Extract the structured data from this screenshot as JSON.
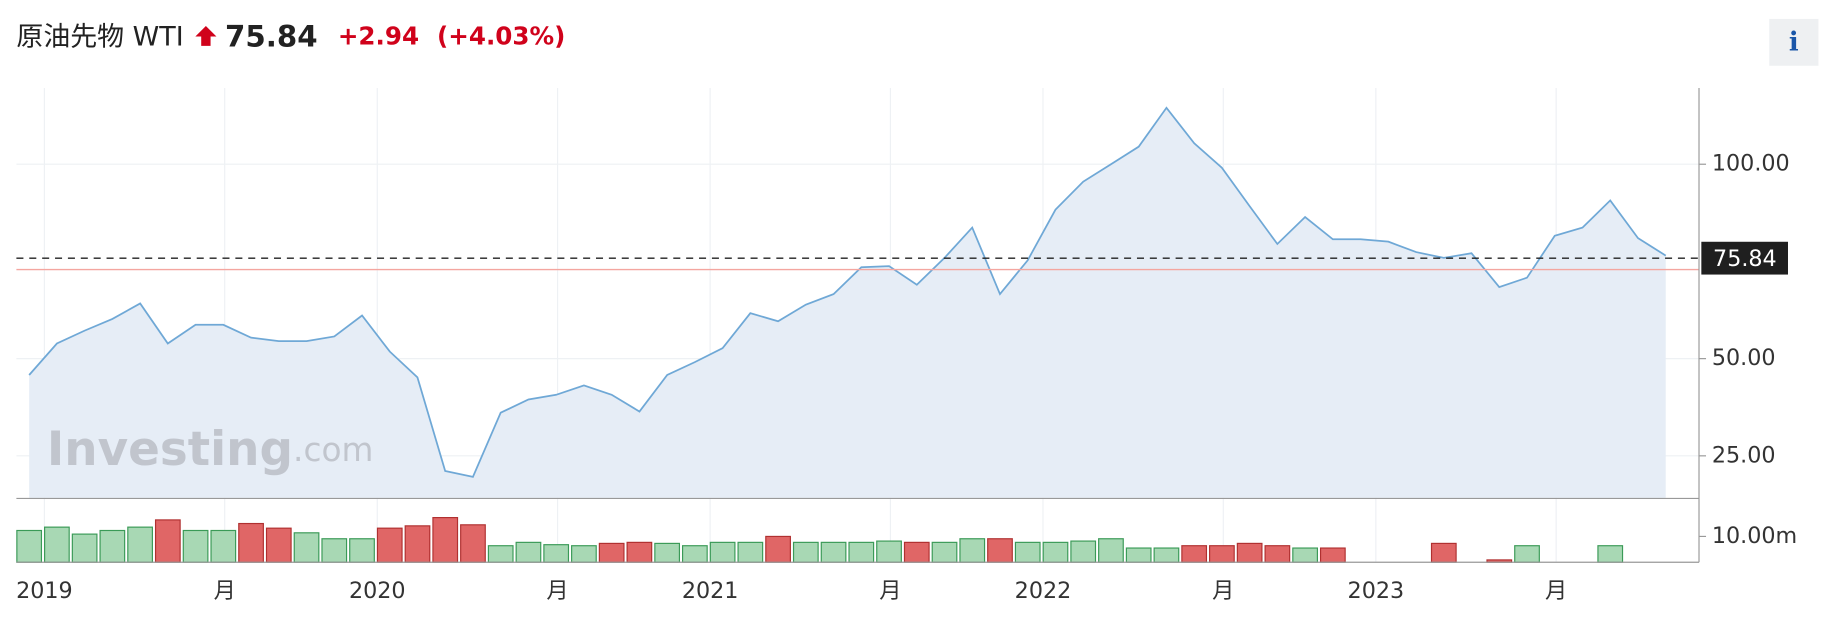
{
  "header": {
    "title": "原油先物 WTI",
    "price": "75.84",
    "change": "+2.94",
    "change_pct": "(+4.03%)",
    "info": "i"
  },
  "watermark": {
    "brand": "Investing",
    "suffix": ".com"
  },
  "chart_data": {
    "type": "area",
    "color": "#6fa8d6",
    "fill": "#e6edf6",
    "values": [
      45.8,
      53.9,
      57.2,
      60.2,
      64.2,
      53.9,
      58.7,
      58.7,
      55.4,
      54.5,
      54.5,
      55.7,
      61.1,
      51.8,
      45.2,
      21.1,
      19.6,
      36.1,
      39.5,
      40.7,
      43.1,
      40.7,
      36.4,
      45.8,
      49.1,
      52.7,
      61.7,
      59.6,
      63.9,
      66.6,
      73.5,
      73.8,
      69.0,
      75.9,
      83.7,
      66.6,
      75.3,
      88.3,
      95.5,
      100.0,
      104.5,
      114.5,
      105.4,
      99.1,
      89.2,
      79.5,
      86.4,
      80.7,
      80.7,
      80.1,
      77.4,
      75.9,
      77.1,
      68.4,
      70.8,
      81.6,
      83.7,
      90.7,
      81.0,
      76.5
    ],
    "last_value": {
      "value": 75.84,
      "label": "75.84"
    },
    "prev_close": 72.9,
    "ylim": [
      14.2,
      119.6
    ],
    "yticks": [
      {
        "value": 25,
        "label": "25.00"
      },
      {
        "value": 50,
        "label": "50.00"
      },
      {
        "value": 100,
        "label": "100.00"
      }
    ],
    "xlim": [
      -0.46,
      60.2
    ],
    "xticks": [
      {
        "value": 0.55,
        "label": "2019"
      },
      {
        "value": 7.05,
        "label": "月"
      },
      {
        "value": 12.55,
        "label": "2020"
      },
      {
        "value": 19.05,
        "label": "月"
      },
      {
        "value": 24.55,
        "label": "2021"
      },
      {
        "value": 31.05,
        "label": "月"
      },
      {
        "value": 36.55,
        "label": "2022"
      },
      {
        "value": 43.05,
        "label": "月"
      },
      {
        "value": 48.55,
        "label": "2023"
      },
      {
        "value": 55.05,
        "label": "月"
      }
    ],
    "grid": true,
    "volume": {
      "values": [
        12.3,
        13.6,
        10.9,
        12.3,
        13.6,
        16.4,
        12.3,
        12.3,
        15.0,
        13.2,
        11.4,
        9.1,
        9.1,
        13.2,
        14.1,
        17.3,
        14.5,
        6.4,
        7.7,
        6.8,
        6.4,
        7.3,
        7.7,
        7.3,
        6.4,
        7.7,
        7.7,
        10.0,
        7.7,
        7.7,
        7.7,
        8.2,
        7.7,
        7.7,
        9.1,
        9.1,
        7.7,
        7.7,
        8.2,
        9.1,
        5.5,
        5.5,
        6.4,
        6.4,
        7.3,
        6.4,
        5.5,
        5.5,
        null,
        null,
        null,
        7.3,
        null,
        0.9,
        6.4,
        null,
        null,
        6.4,
        null,
        null
      ],
      "colors": [
        "#a8d8b4",
        "#a8d8b4",
        "#a8d8b4",
        "#a8d8b4",
        "#a8d8b4",
        "#e06666",
        "#a8d8b4",
        "#a8d8b4",
        "#e06666",
        "#e06666",
        "#a8d8b4",
        "#a8d8b4",
        "#a8d8b4",
        "#e06666",
        "#e06666",
        "#e06666",
        "#e06666",
        "#a8d8b4",
        "#a8d8b4",
        "#a8d8b4",
        "#a8d8b4",
        "#e06666",
        "#e06666",
        "#a8d8b4",
        "#a8d8b4",
        "#a8d8b4",
        "#a8d8b4",
        "#e06666",
        "#a8d8b4",
        "#a8d8b4",
        "#a8d8b4",
        "#a8d8b4",
        "#e06666",
        "#a8d8b4",
        "#a8d8b4",
        "#e06666",
        "#a8d8b4",
        "#a8d8b4",
        "#a8d8b4",
        "#a8d8b4",
        "#a8d8b4",
        "#a8d8b4",
        "#e06666",
        "#e06666",
        "#e06666",
        "#e06666",
        "#a8d8b4",
        "#e06666",
        null,
        null,
        null,
        "#e06666",
        null,
        "#e06666",
        "#a8d8b4",
        null,
        null,
        "#a8d8b4",
        null,
        null
      ],
      "ylim": [
        0,
        24.5
      ],
      "yticks": [
        {
          "value": 10,
          "label": "10.00m"
        }
      ]
    }
  }
}
